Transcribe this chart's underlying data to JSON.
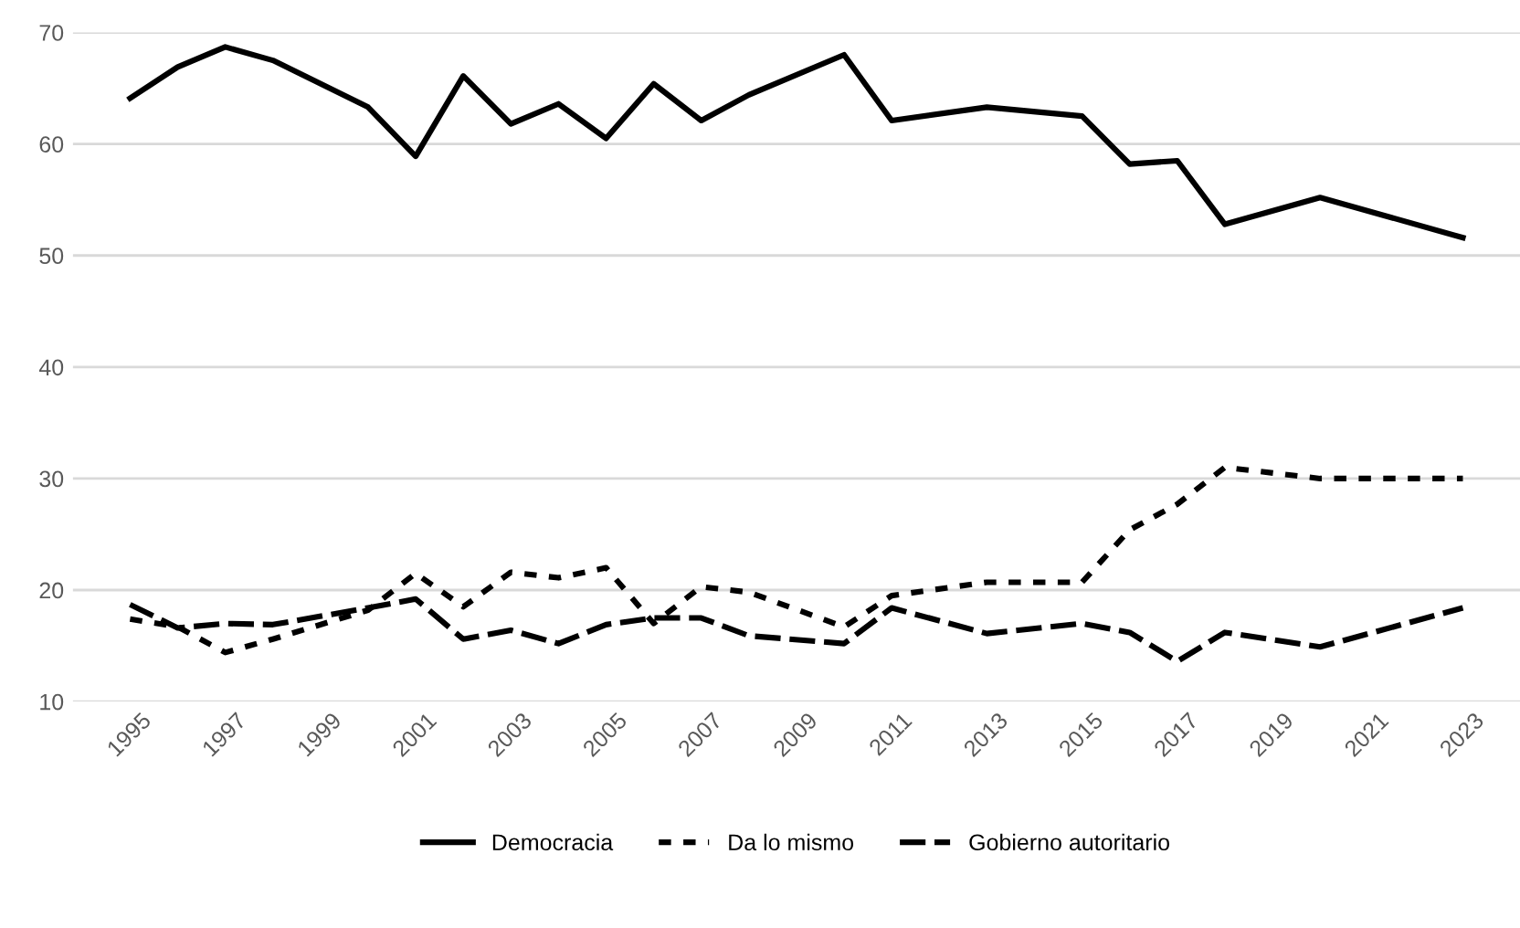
{
  "chart_data": {
    "type": "line",
    "x": [
      1995,
      1996,
      1997,
      1998,
      2000,
      2001,
      2002,
      2003,
      2004,
      2005,
      2006,
      2007,
      2008,
      2010,
      2011,
      2013,
      2015,
      2016,
      2017,
      2018,
      2020,
      2023
    ],
    "series": [
      {
        "name": "Democracia",
        "color": "#000000",
        "line_style": "solid",
        "values": [
          64.1,
          66.9,
          68.7,
          67.5,
          63.3,
          58.9,
          66.1,
          61.8,
          63.6,
          60.5,
          65.4,
          62.1,
          64.4,
          68.0,
          62.1,
          63.3,
          62.5,
          58.2,
          58.5,
          52.8,
          55.2,
          51.6
        ]
      },
      {
        "name": "Da lo mismo",
        "color": "#000000",
        "line_style": "dotted",
        "values": [
          17.4,
          16.7,
          14.4,
          15.6,
          18.2,
          21.5,
          18.5,
          21.6,
          21.1,
          22.0,
          17.0,
          20.3,
          19.8,
          16.7,
          19.5,
          20.7,
          20.7,
          25.4,
          27.7,
          31.0,
          30.0,
          30.0
        ]
      },
      {
        "name": "Gobierno autoritario",
        "color": "#000000",
        "line_style": "dashed",
        "values": [
          18.7,
          16.6,
          17.0,
          16.9,
          18.4,
          19.2,
          15.6,
          16.4,
          15.2,
          16.9,
          17.5,
          17.5,
          15.9,
          15.2,
          18.4,
          16.1,
          17.0,
          16.2,
          13.6,
          16.2,
          14.9,
          18.4
        ]
      }
    ],
    "xlim": [
      1993.8,
      2024.2
    ],
    "xticks": [
      1995,
      1997,
      1999,
      2001,
      2003,
      2005,
      2007,
      2009,
      2011,
      2013,
      2015,
      2017,
      2019,
      2021,
      2023
    ],
    "ylim": [
      10,
      70
    ],
    "yticks": [
      10,
      20,
      30,
      40,
      50,
      60,
      70
    ],
    "grid": "y",
    "legend": "bottom",
    "marker": "none"
  }
}
